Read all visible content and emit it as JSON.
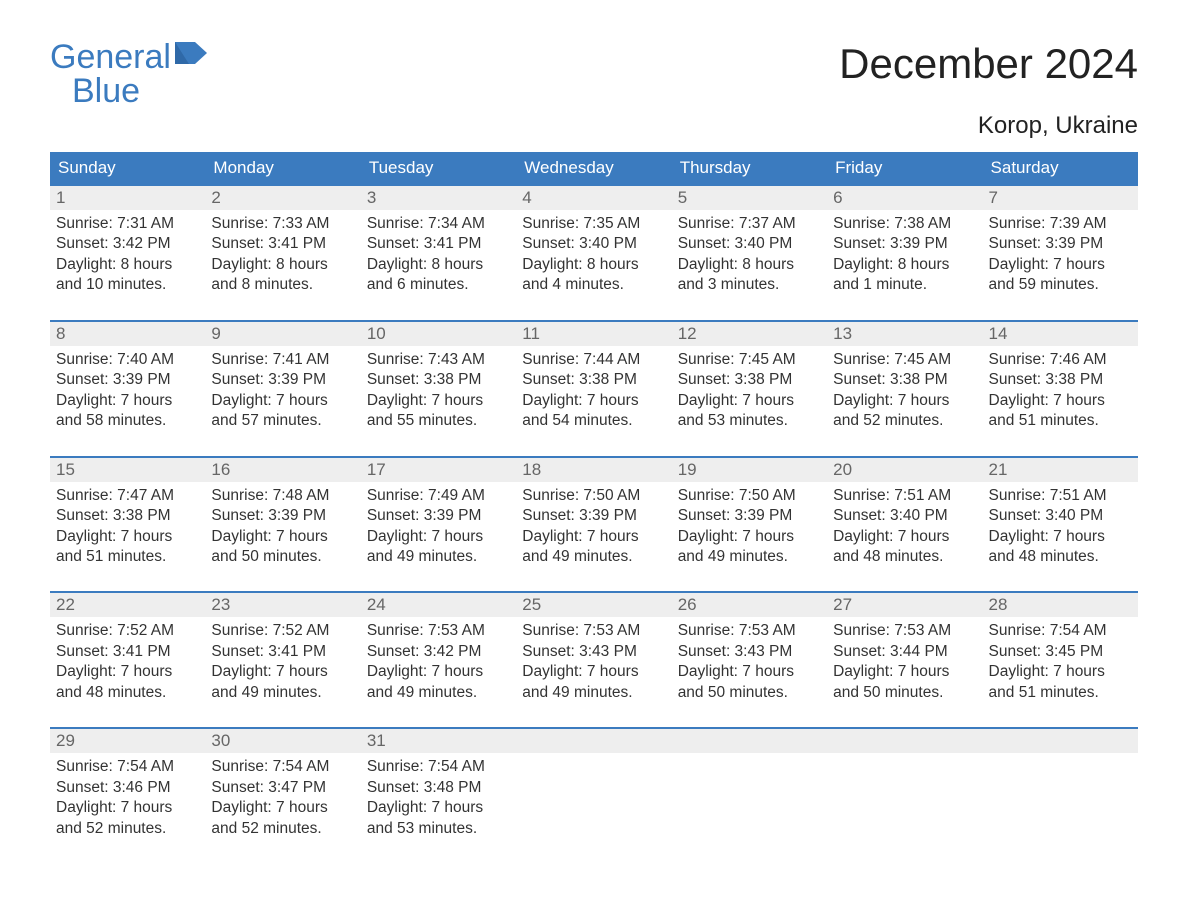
{
  "logo": {
    "word1": "General",
    "word2": "Blue",
    "icon_color": "#3b7bbf"
  },
  "title": "December 2024",
  "location": "Korop, Ukraine",
  "colors": {
    "header_bg": "#3b7bbf",
    "header_text": "#ffffff",
    "daynum_bg": "#eeeeee",
    "daynum_text": "#666666",
    "row_border": "#3b7bbf",
    "body_text": "#333333",
    "page_bg": "#ffffff"
  },
  "typography": {
    "title_fontsize": 42,
    "location_fontsize": 24,
    "weekday_fontsize": 17,
    "daynum_fontsize": 17,
    "cell_fontsize": 15.5,
    "logo_fontsize": 34,
    "font_family": "Arial"
  },
  "weekdays": [
    "Sunday",
    "Monday",
    "Tuesday",
    "Wednesday",
    "Thursday",
    "Friday",
    "Saturday"
  ],
  "weeks": [
    [
      {
        "day": "1",
        "sunrise": "Sunrise: 7:31 AM",
        "sunset": "Sunset: 3:42 PM",
        "d1": "Daylight: 8 hours",
        "d2": "and 10 minutes."
      },
      {
        "day": "2",
        "sunrise": "Sunrise: 7:33 AM",
        "sunset": "Sunset: 3:41 PM",
        "d1": "Daylight: 8 hours",
        "d2": "and 8 minutes."
      },
      {
        "day": "3",
        "sunrise": "Sunrise: 7:34 AM",
        "sunset": "Sunset: 3:41 PM",
        "d1": "Daylight: 8 hours",
        "d2": "and 6 minutes."
      },
      {
        "day": "4",
        "sunrise": "Sunrise: 7:35 AM",
        "sunset": "Sunset: 3:40 PM",
        "d1": "Daylight: 8 hours",
        "d2": "and 4 minutes."
      },
      {
        "day": "5",
        "sunrise": "Sunrise: 7:37 AM",
        "sunset": "Sunset: 3:40 PM",
        "d1": "Daylight: 8 hours",
        "d2": "and 3 minutes."
      },
      {
        "day": "6",
        "sunrise": "Sunrise: 7:38 AM",
        "sunset": "Sunset: 3:39 PM",
        "d1": "Daylight: 8 hours",
        "d2": "and 1 minute."
      },
      {
        "day": "7",
        "sunrise": "Sunrise: 7:39 AM",
        "sunset": "Sunset: 3:39 PM",
        "d1": "Daylight: 7 hours",
        "d2": "and 59 minutes."
      }
    ],
    [
      {
        "day": "8",
        "sunrise": "Sunrise: 7:40 AM",
        "sunset": "Sunset: 3:39 PM",
        "d1": "Daylight: 7 hours",
        "d2": "and 58 minutes."
      },
      {
        "day": "9",
        "sunrise": "Sunrise: 7:41 AM",
        "sunset": "Sunset: 3:39 PM",
        "d1": "Daylight: 7 hours",
        "d2": "and 57 minutes."
      },
      {
        "day": "10",
        "sunrise": "Sunrise: 7:43 AM",
        "sunset": "Sunset: 3:38 PM",
        "d1": "Daylight: 7 hours",
        "d2": "and 55 minutes."
      },
      {
        "day": "11",
        "sunrise": "Sunrise: 7:44 AM",
        "sunset": "Sunset: 3:38 PM",
        "d1": "Daylight: 7 hours",
        "d2": "and 54 minutes."
      },
      {
        "day": "12",
        "sunrise": "Sunrise: 7:45 AM",
        "sunset": "Sunset: 3:38 PM",
        "d1": "Daylight: 7 hours",
        "d2": "and 53 minutes."
      },
      {
        "day": "13",
        "sunrise": "Sunrise: 7:45 AM",
        "sunset": "Sunset: 3:38 PM",
        "d1": "Daylight: 7 hours",
        "d2": "and 52 minutes."
      },
      {
        "day": "14",
        "sunrise": "Sunrise: 7:46 AM",
        "sunset": "Sunset: 3:38 PM",
        "d1": "Daylight: 7 hours",
        "d2": "and 51 minutes."
      }
    ],
    [
      {
        "day": "15",
        "sunrise": "Sunrise: 7:47 AM",
        "sunset": "Sunset: 3:38 PM",
        "d1": "Daylight: 7 hours",
        "d2": "and 51 minutes."
      },
      {
        "day": "16",
        "sunrise": "Sunrise: 7:48 AM",
        "sunset": "Sunset: 3:39 PM",
        "d1": "Daylight: 7 hours",
        "d2": "and 50 minutes."
      },
      {
        "day": "17",
        "sunrise": "Sunrise: 7:49 AM",
        "sunset": "Sunset: 3:39 PM",
        "d1": "Daylight: 7 hours",
        "d2": "and 49 minutes."
      },
      {
        "day": "18",
        "sunrise": "Sunrise: 7:50 AM",
        "sunset": "Sunset: 3:39 PM",
        "d1": "Daylight: 7 hours",
        "d2": "and 49 minutes."
      },
      {
        "day": "19",
        "sunrise": "Sunrise: 7:50 AM",
        "sunset": "Sunset: 3:39 PM",
        "d1": "Daylight: 7 hours",
        "d2": "and 49 minutes."
      },
      {
        "day": "20",
        "sunrise": "Sunrise: 7:51 AM",
        "sunset": "Sunset: 3:40 PM",
        "d1": "Daylight: 7 hours",
        "d2": "and 48 minutes."
      },
      {
        "day": "21",
        "sunrise": "Sunrise: 7:51 AM",
        "sunset": "Sunset: 3:40 PM",
        "d1": "Daylight: 7 hours",
        "d2": "and 48 minutes."
      }
    ],
    [
      {
        "day": "22",
        "sunrise": "Sunrise: 7:52 AM",
        "sunset": "Sunset: 3:41 PM",
        "d1": "Daylight: 7 hours",
        "d2": "and 48 minutes."
      },
      {
        "day": "23",
        "sunrise": "Sunrise: 7:52 AM",
        "sunset": "Sunset: 3:41 PM",
        "d1": "Daylight: 7 hours",
        "d2": "and 49 minutes."
      },
      {
        "day": "24",
        "sunrise": "Sunrise: 7:53 AM",
        "sunset": "Sunset: 3:42 PM",
        "d1": "Daylight: 7 hours",
        "d2": "and 49 minutes."
      },
      {
        "day": "25",
        "sunrise": "Sunrise: 7:53 AM",
        "sunset": "Sunset: 3:43 PM",
        "d1": "Daylight: 7 hours",
        "d2": "and 49 minutes."
      },
      {
        "day": "26",
        "sunrise": "Sunrise: 7:53 AM",
        "sunset": "Sunset: 3:43 PM",
        "d1": "Daylight: 7 hours",
        "d2": "and 50 minutes."
      },
      {
        "day": "27",
        "sunrise": "Sunrise: 7:53 AM",
        "sunset": "Sunset: 3:44 PM",
        "d1": "Daylight: 7 hours",
        "d2": "and 50 minutes."
      },
      {
        "day": "28",
        "sunrise": "Sunrise: 7:54 AM",
        "sunset": "Sunset: 3:45 PM",
        "d1": "Daylight: 7 hours",
        "d2": "and 51 minutes."
      }
    ],
    [
      {
        "day": "29",
        "sunrise": "Sunrise: 7:54 AM",
        "sunset": "Sunset: 3:46 PM",
        "d1": "Daylight: 7 hours",
        "d2": "and 52 minutes."
      },
      {
        "day": "30",
        "sunrise": "Sunrise: 7:54 AM",
        "sunset": "Sunset: 3:47 PM",
        "d1": "Daylight: 7 hours",
        "d2": "and 52 minutes."
      },
      {
        "day": "31",
        "sunrise": "Sunrise: 7:54 AM",
        "sunset": "Sunset: 3:48 PM",
        "d1": "Daylight: 7 hours",
        "d2": "and 53 minutes."
      },
      null,
      null,
      null,
      null
    ]
  ]
}
